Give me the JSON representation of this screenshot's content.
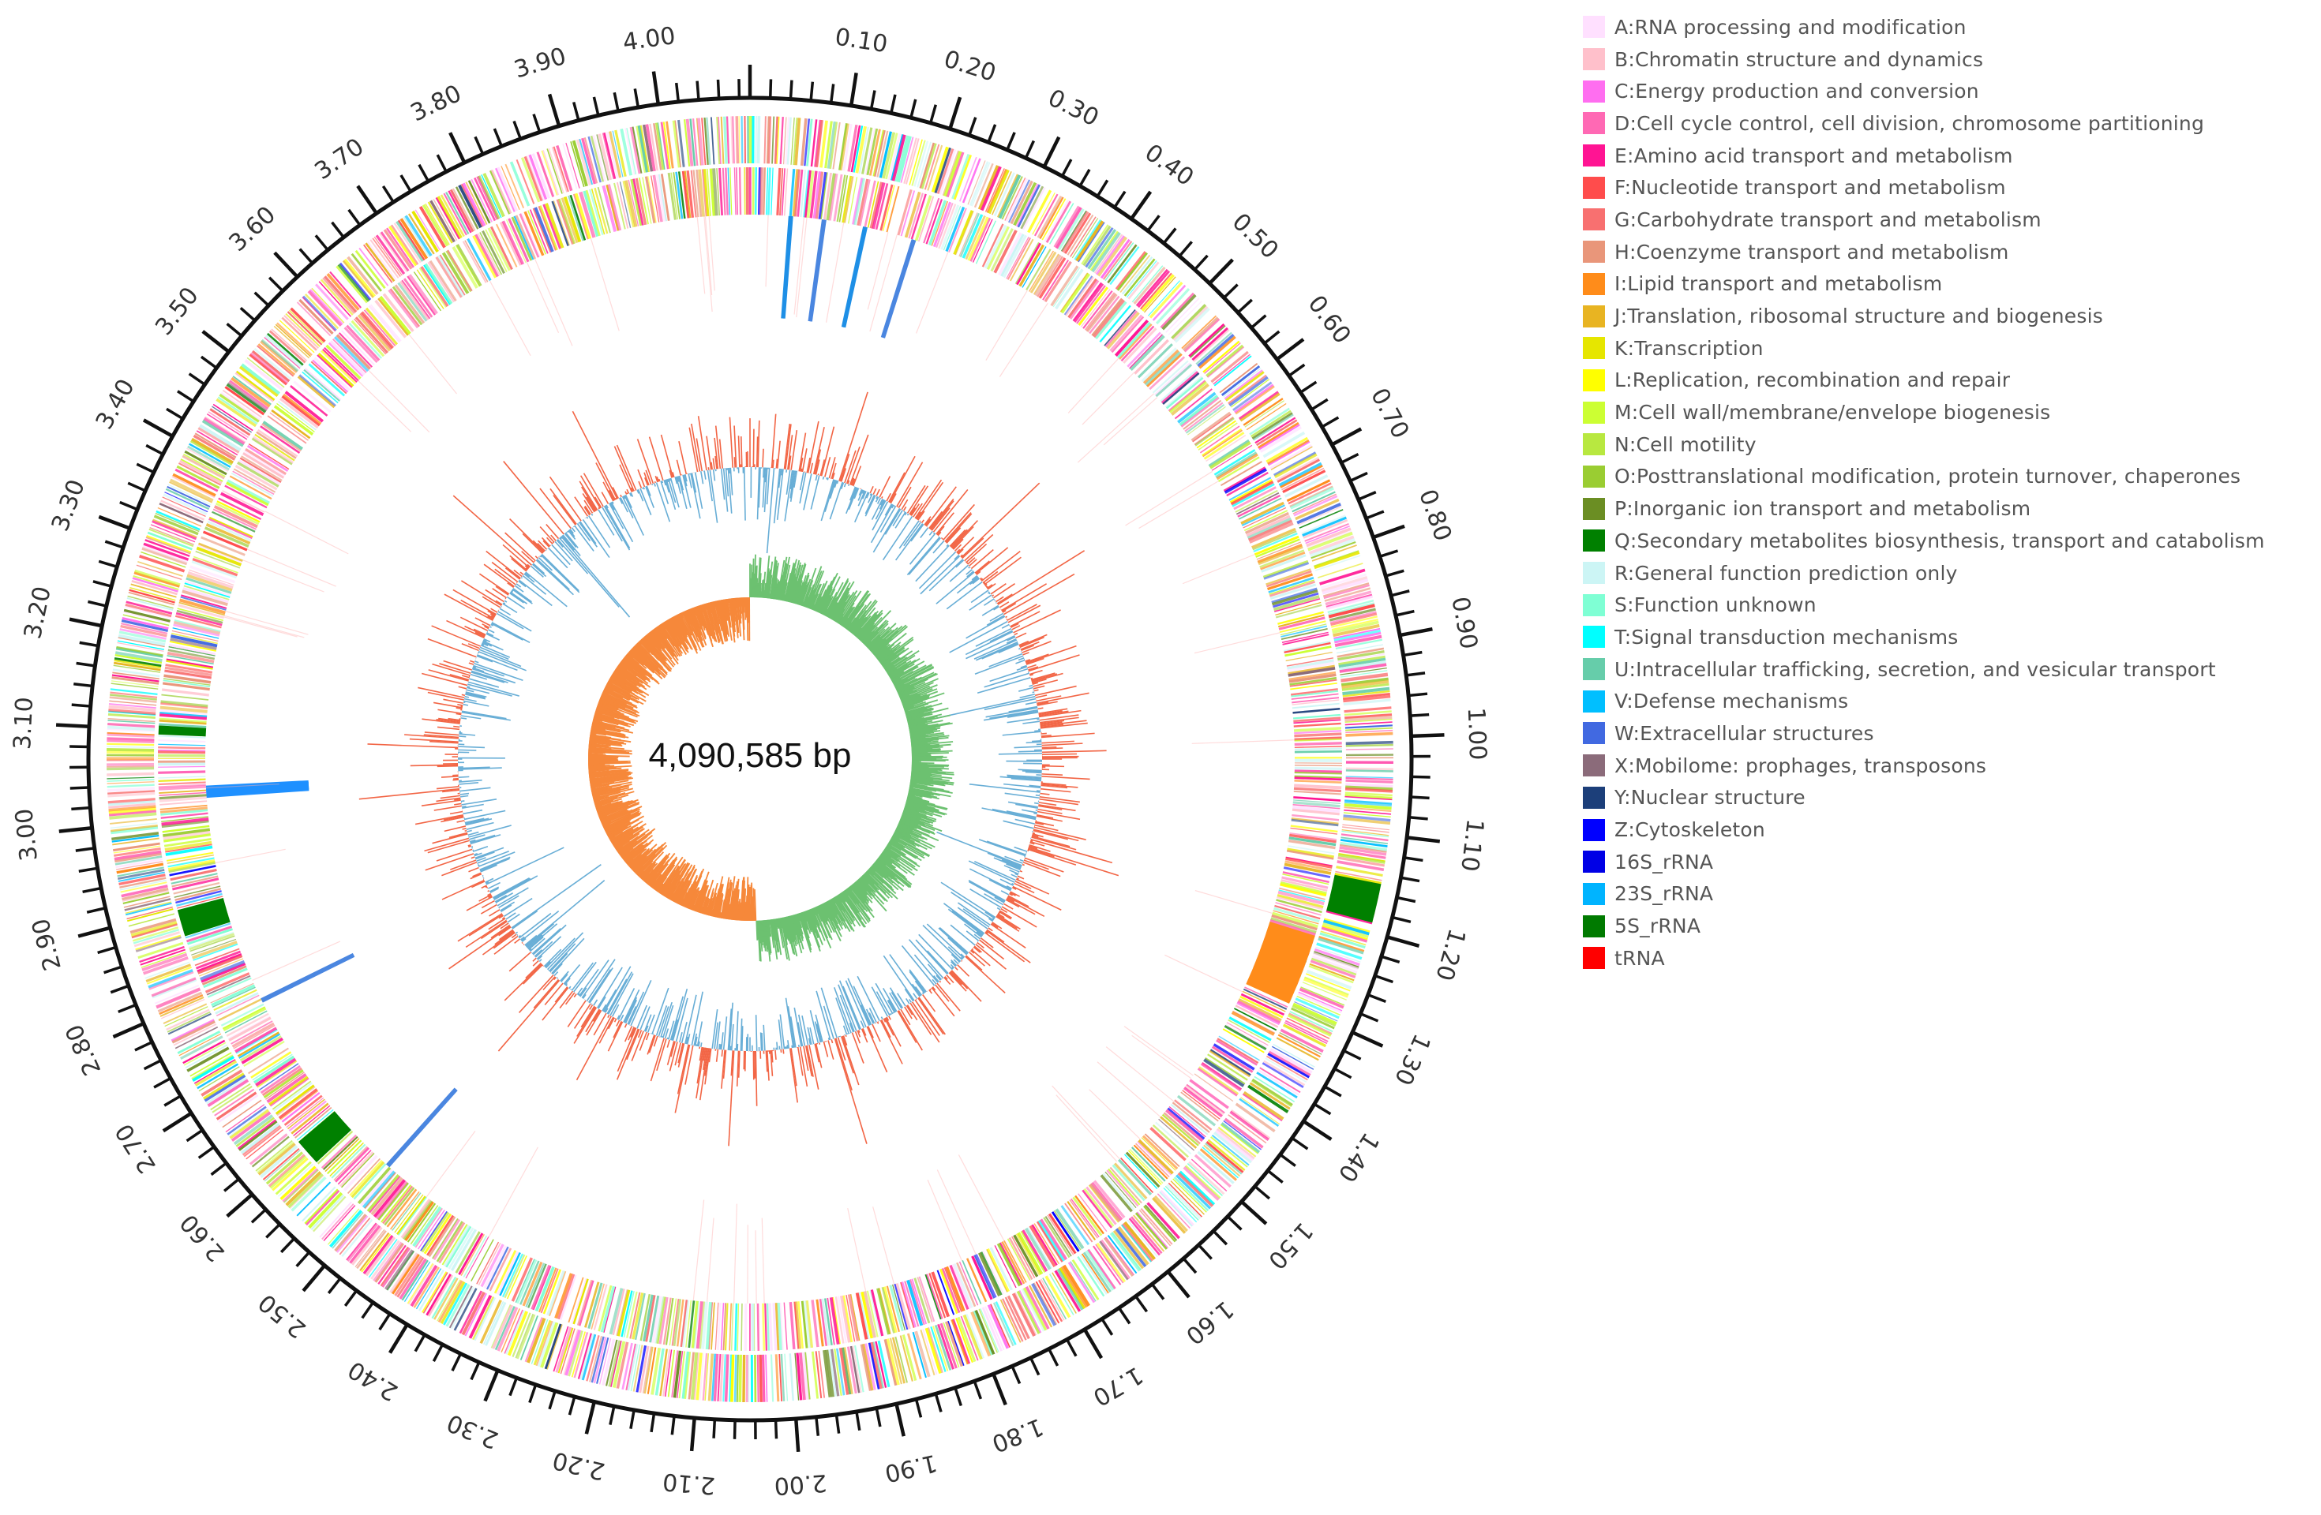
{
  "center_label": "4,090,585 bp",
  "genome_length_mb": 4.090585,
  "scale": {
    "tick_step_mb": 0.1,
    "labels": [
      "4.00",
      "0.10",
      "0.20",
      "0.30",
      "0.40",
      "0.50",
      "0.60",
      "0.70",
      "0.80",
      "0.90",
      "1.00",
      "1.10",
      "1.20",
      "1.30",
      "1.40",
      "1.50",
      "1.60",
      "1.70",
      "1.80",
      "1.90",
      "2.00",
      "2.10",
      "2.20",
      "2.30",
      "2.40",
      "2.50",
      "2.60",
      "2.70",
      "2.80",
      "2.90",
      "3.00",
      "3.10",
      "3.20",
      "3.30",
      "3.40",
      "3.50",
      "3.60",
      "3.70",
      "3.80",
      "3.90"
    ],
    "label_positions_mb": [
      4.0,
      0.1,
      0.2,
      0.3,
      0.4,
      0.5,
      0.6,
      0.7,
      0.8,
      0.9,
      1.0,
      1.1,
      1.2,
      1.3,
      1.4,
      1.5,
      1.6,
      1.7,
      1.8,
      1.9,
      2.0,
      2.1,
      2.2,
      2.3,
      2.4,
      2.5,
      2.6,
      2.7,
      2.8,
      2.9,
      3.0,
      3.1,
      3.2,
      3.3,
      3.4,
      3.5,
      3.6,
      3.7,
      3.8,
      3.9
    ]
  },
  "legend": [
    {
      "label": "A:RNA processing and modification",
      "color": "#ffe0ff"
    },
    {
      "label": "B:Chromatin structure and dynamics",
      "color": "#ffc0cb"
    },
    {
      "label": "C:Energy production and conversion",
      "color": "#ff6ef0"
    },
    {
      "label": "D:Cell cycle control, cell division, chromosome partitioning",
      "color": "#ff69b4"
    },
    {
      "label": "E:Amino acid transport and metabolism",
      "color": "#ff1493"
    },
    {
      "label": "F:Nucleotide transport and metabolism",
      "color": "#ff4c4c"
    },
    {
      "label": "G:Carbohydrate transport and metabolism",
      "color": "#f87070"
    },
    {
      "label": "H:Coenzyme transport and metabolism",
      "color": "#e9967a"
    },
    {
      "label": "I:Lipid transport and metabolism",
      "color": "#ff8c1a"
    },
    {
      "label": "J:Translation, ribosomal structure and biogenesis",
      "color": "#e8b422"
    },
    {
      "label": "K:Transcription",
      "color": "#e6e600"
    },
    {
      "label": "L:Replication, recombination and repair",
      "color": "#ffff00"
    },
    {
      "label": "M:Cell wall/membrane/envelope biogenesis",
      "color": "#ccff33"
    },
    {
      "label": "N:Cell motility",
      "color": "#b8e840"
    },
    {
      "label": "O:Posttranslational modification, protein turnover, chaperones",
      "color": "#9acd32"
    },
    {
      "label": "P:Inorganic ion transport and metabolism",
      "color": "#6b8e23"
    },
    {
      "label": "Q:Secondary metabolites biosynthesis, transport and catabolism",
      "color": "#008000"
    },
    {
      "label": "R:General function prediction only",
      "color": "#ccf5f5"
    },
    {
      "label": "S:Function unknown",
      "color": "#7fffd4"
    },
    {
      "label": "T:Signal transduction mechanisms",
      "color": "#00ffff"
    },
    {
      "label": "U:Intracellular trafficking, secretion, and vesicular transport",
      "color": "#66cdaa"
    },
    {
      "label": "V:Defense mechanisms",
      "color": "#00bfff"
    },
    {
      "label": "W:Extracellular structures",
      "color": "#4169e1"
    },
    {
      "label": "X:Mobilome: prophages, transposons",
      "color": "#8b6b7a"
    },
    {
      "label": "Y:Nuclear structure",
      "color": "#1c3f7a"
    },
    {
      "label": "Z:Cytoskeleton",
      "color": "#0000ff"
    },
    {
      "label": "16S_rRNA",
      "color": "#0000e6"
    },
    {
      "label": "23S_rRNA",
      "color": "#00b4ff"
    },
    {
      "label": "5S_rRNA",
      "color": "#007a00"
    },
    {
      "label": "tRNA",
      "color": "#ff0000"
    }
  ],
  "tracks": {
    "rrna_clusters_mb": [
      0.05,
      0.09,
      0.14,
      0.2,
      3.03,
      2.77,
      2.52
    ],
    "gc_content_colors": {
      "above": "#f26545",
      "below": "#68aed6"
    },
    "gc_skew_colors": {
      "positive": "#6cc170",
      "negative": "#f6883a"
    }
  }
}
